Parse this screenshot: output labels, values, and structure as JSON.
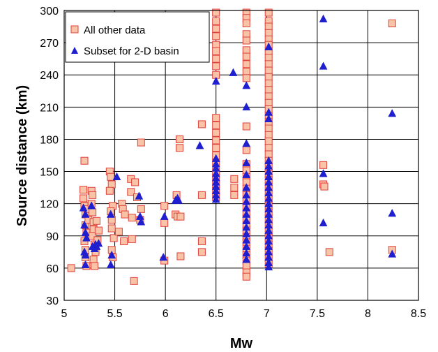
{
  "chart_data": {
    "type": "scatter",
    "xlabel": "Mw",
    "ylabel": "Source distance (km)",
    "xlim": [
      5,
      8.5
    ],
    "ylim": [
      30,
      300
    ],
    "xticks": [
      "5",
      "5.5",
      "6",
      "6.5",
      "7",
      "7.5",
      "8",
      "8.5"
    ],
    "yticks": [
      "30",
      "60",
      "90",
      "120",
      "150",
      "180",
      "210",
      "240",
      "270",
      "300"
    ],
    "grid": true,
    "legend_position": "top-left",
    "series": [
      {
        "name": "All other data",
        "marker": "square",
        "fill": "#f9c3a8",
        "edge": "#e0413a",
        "points": [
          [
            5.07,
            60
          ],
          [
            5.19,
            133
          ],
          [
            5.2,
            160
          ],
          [
            5.19,
            125
          ],
          [
            5.2,
            118
          ],
          [
            5.21,
            110
          ],
          [
            5.21,
            100
          ],
          [
            5.22,
            93
          ],
          [
            5.2,
            85
          ],
          [
            5.21,
            77
          ],
          [
            5.21,
            70
          ],
          [
            5.22,
            62
          ],
          [
            5.23,
            115
          ],
          [
            5.24,
            105
          ],
          [
            5.27,
            132
          ],
          [
            5.28,
            128
          ],
          [
            5.27,
            120
          ],
          [
            5.28,
            112
          ],
          [
            5.29,
            103
          ],
          [
            5.29,
            96
          ],
          [
            5.28,
            90
          ],
          [
            5.3,
            82
          ],
          [
            5.31,
            75
          ],
          [
            5.29,
            68
          ],
          [
            5.3,
            62
          ],
          [
            5.32,
            104
          ],
          [
            5.34,
            95
          ],
          [
            5.33,
            86
          ],
          [
            5.45,
            150
          ],
          [
            5.46,
            145
          ],
          [
            5.47,
            138
          ],
          [
            5.45,
            132
          ],
          [
            5.48,
            118
          ],
          [
            5.46,
            113
          ],
          [
            5.47,
            105
          ],
          [
            5.47,
            97
          ],
          [
            5.49,
            88
          ],
          [
            5.47,
            77
          ],
          [
            5.48,
            70
          ],
          [
            5.54,
            94
          ],
          [
            5.57,
            120
          ],
          [
            5.58,
            115
          ],
          [
            5.6,
            110
          ],
          [
            5.59,
            85
          ],
          [
            5.66,
            143
          ],
          [
            5.66,
            131
          ],
          [
            5.67,
            107
          ],
          [
            5.67,
            87
          ],
          [
            5.69,
            48
          ],
          [
            5.7,
            140
          ],
          [
            5.72,
            126
          ],
          [
            5.76,
            177
          ],
          [
            5.76,
            115
          ],
          [
            5.75,
            105
          ],
          [
            5.99,
            118
          ],
          [
            5.99,
            102
          ],
          [
            5.99,
            67
          ],
          [
            6.11,
            128
          ],
          [
            6.1,
            110
          ],
          [
            6.12,
            108
          ],
          [
            6.14,
            180
          ],
          [
            6.14,
            172
          ],
          [
            6.15,
            108
          ],
          [
            6.15,
            71
          ],
          [
            6.36,
            194
          ],
          [
            6.36,
            128
          ],
          [
            6.36,
            85
          ],
          [
            6.36,
            75
          ],
          [
            6.5,
            298
          ],
          [
            6.5,
            290
          ],
          [
            6.5,
            283
          ],
          [
            6.5,
            276
          ],
          [
            6.5,
            268
          ],
          [
            6.5,
            262
          ],
          [
            6.5,
            255
          ],
          [
            6.5,
            248
          ],
          [
            6.5,
            240
          ],
          [
            6.5,
            200
          ],
          [
            6.5,
            193
          ],
          [
            6.5,
            186
          ],
          [
            6.5,
            179
          ],
          [
            6.5,
            172
          ],
          [
            6.5,
            165
          ],
          [
            6.5,
            158
          ],
          [
            6.5,
            150
          ],
          [
            6.5,
            144
          ],
          [
            6.5,
            138
          ],
          [
            6.5,
            132
          ],
          [
            6.5,
            126
          ],
          [
            6.68,
            143
          ],
          [
            6.68,
            135
          ],
          [
            6.68,
            128
          ],
          [
            6.8,
            298
          ],
          [
            6.8,
            293
          ],
          [
            6.8,
            288
          ],
          [
            6.8,
            278
          ],
          [
            6.8,
            272
          ],
          [
            6.8,
            263
          ],
          [
            6.8,
            257
          ],
          [
            6.8,
            250
          ],
          [
            6.8,
            243
          ],
          [
            6.8,
            237
          ],
          [
            6.8,
            192
          ],
          [
            6.8,
            170
          ],
          [
            6.8,
            157
          ],
          [
            6.8,
            151
          ],
          [
            6.8,
            145
          ],
          [
            6.8,
            140
          ],
          [
            6.8,
            134
          ],
          [
            6.8,
            128
          ],
          [
            6.8,
            123
          ],
          [
            6.8,
            117
          ],
          [
            6.8,
            111
          ],
          [
            6.8,
            106
          ],
          [
            6.8,
            100
          ],
          [
            6.8,
            95
          ],
          [
            6.8,
            89
          ],
          [
            6.8,
            84
          ],
          [
            6.8,
            78
          ],
          [
            6.8,
            72
          ],
          [
            6.8,
            67
          ],
          [
            6.8,
            62
          ],
          [
            6.8,
            56
          ],
          [
            6.8,
            52
          ],
          [
            7.02,
            298
          ],
          [
            7.02,
            290
          ],
          [
            7.02,
            285
          ],
          [
            7.02,
            279
          ],
          [
            7.02,
            273
          ],
          [
            7.02,
            268
          ],
          [
            7.02,
            262
          ],
          [
            7.02,
            256
          ],
          [
            7.02,
            250
          ],
          [
            7.02,
            244
          ],
          [
            7.02,
            238
          ],
          [
            7.02,
            232
          ],
          [
            7.02,
            226
          ],
          [
            7.02,
            220
          ],
          [
            7.02,
            214
          ],
          [
            7.02,
            208
          ],
          [
            7.02,
            202
          ],
          [
            7.02,
            196
          ],
          [
            7.02,
            190
          ],
          [
            7.02,
            184
          ],
          [
            7.02,
            178
          ],
          [
            7.02,
            172
          ],
          [
            7.02,
            166
          ],
          [
            7.02,
            160
          ],
          [
            7.02,
            154
          ],
          [
            7.02,
            148
          ],
          [
            7.02,
            142
          ],
          [
            7.02,
            136
          ],
          [
            7.02,
            130
          ],
          [
            7.02,
            124
          ],
          [
            7.02,
            118
          ],
          [
            7.02,
            112
          ],
          [
            7.02,
            106
          ],
          [
            7.02,
            100
          ],
          [
            7.02,
            94
          ],
          [
            7.02,
            88
          ],
          [
            7.02,
            82
          ],
          [
            7.02,
            76
          ],
          [
            7.02,
            70
          ],
          [
            7.02,
            64
          ],
          [
            7.56,
            156
          ],
          [
            7.56,
            138
          ],
          [
            7.57,
            136
          ],
          [
            7.62,
            75
          ],
          [
            8.24,
            288
          ],
          [
            8.24,
            77
          ]
        ]
      },
      {
        "name": "Subset for 2-D basin",
        "marker": "triangle",
        "fill": "#1f1fd0",
        "edge": "#1f1fd0",
        "points": [
          [
            5.19,
            116
          ],
          [
            5.21,
            110
          ],
          [
            5.2,
            100
          ],
          [
            5.21,
            93
          ],
          [
            5.22,
            88
          ],
          [
            5.2,
            75
          ],
          [
            5.21,
            72
          ],
          [
            5.21,
            63
          ],
          [
            5.27,
            118
          ],
          [
            5.28,
            80
          ],
          [
            5.3,
            78
          ],
          [
            5.31,
            82
          ],
          [
            5.32,
            80
          ],
          [
            5.34,
            83
          ],
          [
            5.46,
            110
          ],
          [
            5.47,
            72
          ],
          [
            5.46,
            63
          ],
          [
            5.52,
            145
          ],
          [
            5.74,
            127
          ],
          [
            5.75,
            108
          ],
          [
            5.76,
            103
          ],
          [
            5.98,
            70
          ],
          [
            5.99,
            108
          ],
          [
            6.1,
            123
          ],
          [
            6.12,
            125
          ],
          [
            6.13,
            123
          ],
          [
            6.34,
            174
          ],
          [
            6.5,
            234
          ],
          [
            6.5,
            162
          ],
          [
            6.5,
            157
          ],
          [
            6.5,
            153
          ],
          [
            6.5,
            148
          ],
          [
            6.5,
            144
          ],
          [
            6.5,
            140
          ],
          [
            6.5,
            136
          ],
          [
            6.5,
            132
          ],
          [
            6.5,
            128
          ],
          [
            6.5,
            124
          ],
          [
            6.67,
            242
          ],
          [
            6.8,
            230
          ],
          [
            6.8,
            210
          ],
          [
            6.8,
            176
          ],
          [
            6.8,
            158
          ],
          [
            6.8,
            147
          ],
          [
            6.8,
            135
          ],
          [
            6.8,
            128
          ],
          [
            6.8,
            122
          ],
          [
            6.8,
            116
          ],
          [
            6.8,
            110
          ],
          [
            6.8,
            104
          ],
          [
            6.8,
            98
          ],
          [
            6.8,
            92
          ],
          [
            6.8,
            86
          ],
          [
            6.8,
            80
          ],
          [
            6.8,
            74
          ],
          [
            6.8,
            68
          ],
          [
            7.02,
            266
          ],
          [
            7.02,
            205
          ],
          [
            7.02,
            199
          ],
          [
            7.02,
            160
          ],
          [
            7.02,
            155
          ],
          [
            7.02,
            150
          ],
          [
            7.02,
            145
          ],
          [
            7.02,
            140
          ],
          [
            7.02,
            135
          ],
          [
            7.02,
            130
          ],
          [
            7.02,
            125
          ],
          [
            7.02,
            120
          ],
          [
            7.02,
            115
          ],
          [
            7.02,
            110
          ],
          [
            7.02,
            105
          ],
          [
            7.02,
            100
          ],
          [
            7.02,
            95
          ],
          [
            7.02,
            90
          ],
          [
            7.02,
            85
          ],
          [
            7.02,
            80
          ],
          [
            7.02,
            75
          ],
          [
            7.02,
            70
          ],
          [
            7.02,
            65
          ],
          [
            7.02,
            61
          ],
          [
            7.56,
            292
          ],
          [
            7.56,
            248
          ],
          [
            7.56,
            148
          ],
          [
            7.56,
            102
          ],
          [
            8.24,
            204
          ],
          [
            8.24,
            111
          ],
          [
            8.24,
            73
          ]
        ]
      }
    ]
  }
}
